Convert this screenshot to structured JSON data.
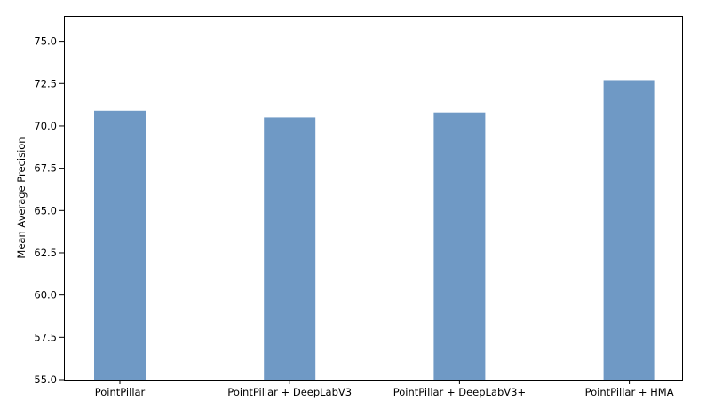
{
  "chart_data": {
    "type": "bar",
    "title": "",
    "xlabel": "",
    "ylabel": "Mean Average Precision",
    "categories": [
      "PointPillar",
      "PointPillar + DeepLabV3",
      "PointPillar + DeepLabV3+",
      "PointPillar + HMA"
    ],
    "values": [
      70.9,
      70.5,
      70.8,
      72.7
    ],
    "ylim": [
      55.0,
      76.5
    ],
    "yticks": [
      "55.0",
      "57.5",
      "60.0",
      "62.5",
      "65.0",
      "67.5",
      "70.0",
      "72.5",
      "75.0"
    ],
    "grid": false,
    "legend": "none",
    "bar_color": "#6f99c5"
  }
}
